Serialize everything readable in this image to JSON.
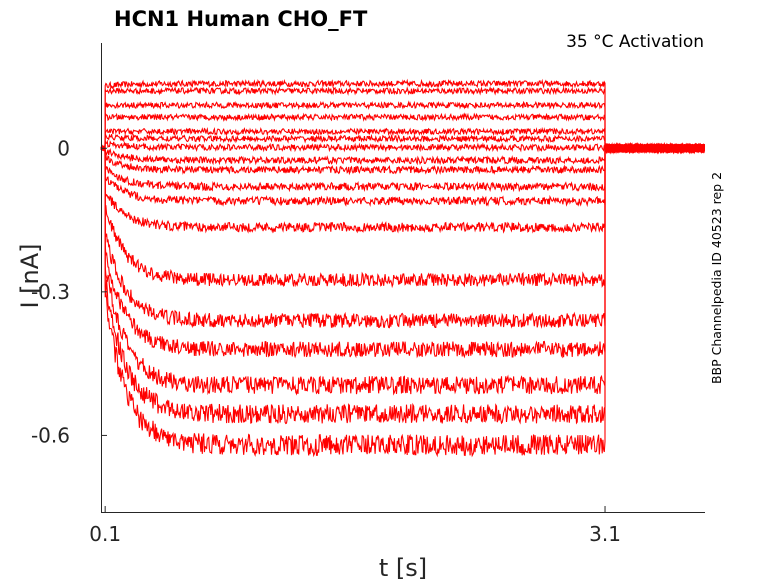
{
  "chart_data": {
    "type": "line",
    "title": "HCN1  Human  CHO_FT",
    "annotation": "35 °C  Activation",
    "side_label": "BBP Channelpedia ID 40523 rep 2",
    "xlabel": "t [s]",
    "ylabel": "I [nA]",
    "xlim": [
      0.075,
      3.7
    ],
    "ylim": [
      -0.76,
      0.22
    ],
    "xticks": [
      {
        "value": 0.1,
        "label": "0.1"
      },
      {
        "value": 3.1,
        "label": "3.1"
      }
    ],
    "yticks": [
      {
        "value": 0,
        "label": "0"
      },
      {
        "value": -0.3,
        "label": "-0.3"
      },
      {
        "value": -0.6,
        "label": "-0.6"
      }
    ],
    "step_start": 0.1,
    "step_end": 3.1,
    "trace_color": "#ff0000",
    "series": [
      {
        "initial": 0.13,
        "steady": 0.135
      },
      {
        "initial": 0.12,
        "steady": 0.12
      },
      {
        "initial": 0.09,
        "steady": 0.09
      },
      {
        "initial": 0.065,
        "steady": 0.065
      },
      {
        "initial": 0.035,
        "steady": 0.035
      },
      {
        "initial": 0.025,
        "steady": 0.02
      },
      {
        "initial": 0.01,
        "steady": 0.002
      },
      {
        "initial": -0.005,
        "steady": -0.025
      },
      {
        "initial": -0.02,
        "steady": -0.045
      },
      {
        "initial": -0.04,
        "steady": -0.08
      },
      {
        "initial": -0.06,
        "steady": -0.11
      },
      {
        "initial": -0.09,
        "steady": -0.165
      },
      {
        "initial": -0.12,
        "steady": -0.275
      },
      {
        "initial": -0.18,
        "steady": -0.36
      },
      {
        "initial": -0.21,
        "steady": -0.42
      },
      {
        "initial": -0.24,
        "steady": -0.495
      },
      {
        "initial": -0.27,
        "steady": -0.555
      },
      {
        "initial": -0.3,
        "steady": -0.62
      }
    ]
  }
}
